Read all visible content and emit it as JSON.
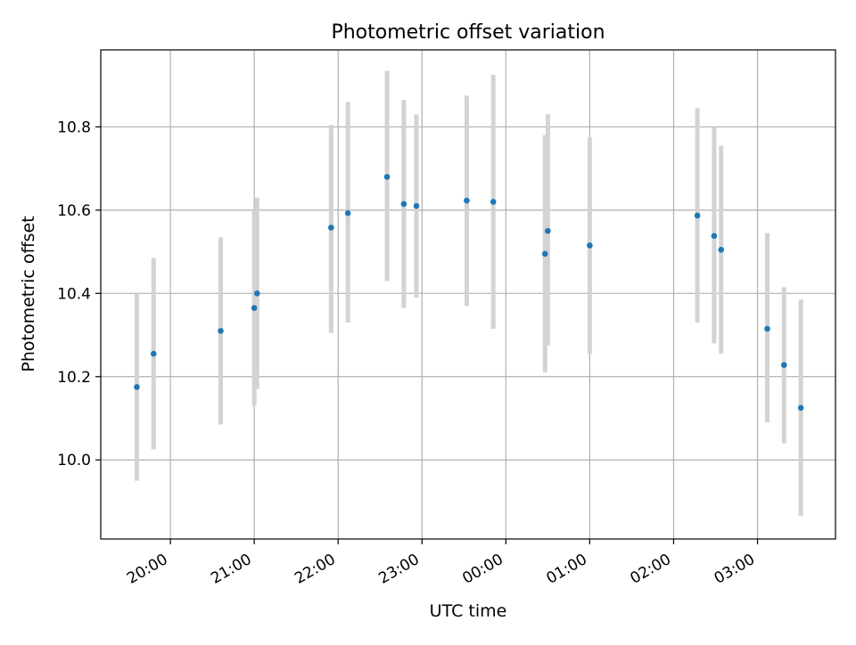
{
  "chart_data": {
    "type": "scatter",
    "title": "Photometric offset variation",
    "xlabel": "UTC time",
    "ylabel": "Photometric offset",
    "x_tick_labels": [
      "20:00",
      "21:00",
      "22:00",
      "23:00",
      "00:00",
      "01:00",
      "02:00",
      "03:00"
    ],
    "x_ticks_hours": [
      20,
      21,
      22,
      23,
      24,
      25,
      26,
      27
    ],
    "y_ticks": [
      10.0,
      10.2,
      10.4,
      10.6,
      10.8
    ],
    "y_tick_labels": [
      "10.0",
      "10.2",
      "10.4",
      "10.6",
      "10.8"
    ],
    "xlim_hours": [
      19.17,
      27.93
    ],
    "ylim": [
      9.81,
      10.985
    ],
    "grid": true,
    "x_is_time_of_day": true,
    "colors": {
      "point": "#1f77b4",
      "errorbar": "#d3d3d3",
      "grid": "#b0b0b0"
    },
    "series": [
      {
        "points": [
          {
            "time": "19:36",
            "y": 10.175,
            "lo": 9.95,
            "hi": 10.4
          },
          {
            "time": "19:48",
            "y": 10.255,
            "lo": 10.025,
            "hi": 10.485
          },
          {
            "time": "20:36",
            "y": 10.31,
            "lo": 10.085,
            "hi": 10.535
          },
          {
            "time": "21:00",
            "y": 10.365,
            "lo": 10.13,
            "hi": 10.6
          },
          {
            "time": "21:02",
            "y": 10.4,
            "lo": 10.17,
            "hi": 10.63
          },
          {
            "time": "21:55",
            "y": 10.558,
            "lo": 10.305,
            "hi": 10.805
          },
          {
            "time": "22:07",
            "y": 10.593,
            "lo": 10.33,
            "hi": 10.86
          },
          {
            "time": "22:35",
            "y": 10.68,
            "lo": 10.43,
            "hi": 10.935
          },
          {
            "time": "22:47",
            "y": 10.615,
            "lo": 10.365,
            "hi": 10.865
          },
          {
            "time": "22:56",
            "y": 10.61,
            "lo": 10.39,
            "hi": 10.83
          },
          {
            "time": "23:32",
            "y": 10.623,
            "lo": 10.37,
            "hi": 10.875
          },
          {
            "time": "23:51",
            "y": 10.62,
            "lo": 10.315,
            "hi": 10.925
          },
          {
            "time": "00:28",
            "y": 10.495,
            "lo": 10.21,
            "hi": 10.78
          },
          {
            "time": "00:30",
            "y": 10.55,
            "lo": 10.275,
            "hi": 10.83
          },
          {
            "time": "01:00",
            "y": 10.515,
            "lo": 10.255,
            "hi": 10.775
          },
          {
            "time": "02:17",
            "y": 10.587,
            "lo": 10.33,
            "hi": 10.845
          },
          {
            "time": "02:29",
            "y": 10.538,
            "lo": 10.28,
            "hi": 10.8
          },
          {
            "time": "02:34",
            "y": 10.505,
            "lo": 10.255,
            "hi": 10.755
          },
          {
            "time": "03:07",
            "y": 10.315,
            "lo": 10.09,
            "hi": 10.545
          },
          {
            "time": "03:19",
            "y": 10.228,
            "lo": 10.04,
            "hi": 10.415
          },
          {
            "time": "03:31",
            "y": 10.125,
            "lo": 9.865,
            "hi": 10.385
          }
        ]
      }
    ]
  }
}
